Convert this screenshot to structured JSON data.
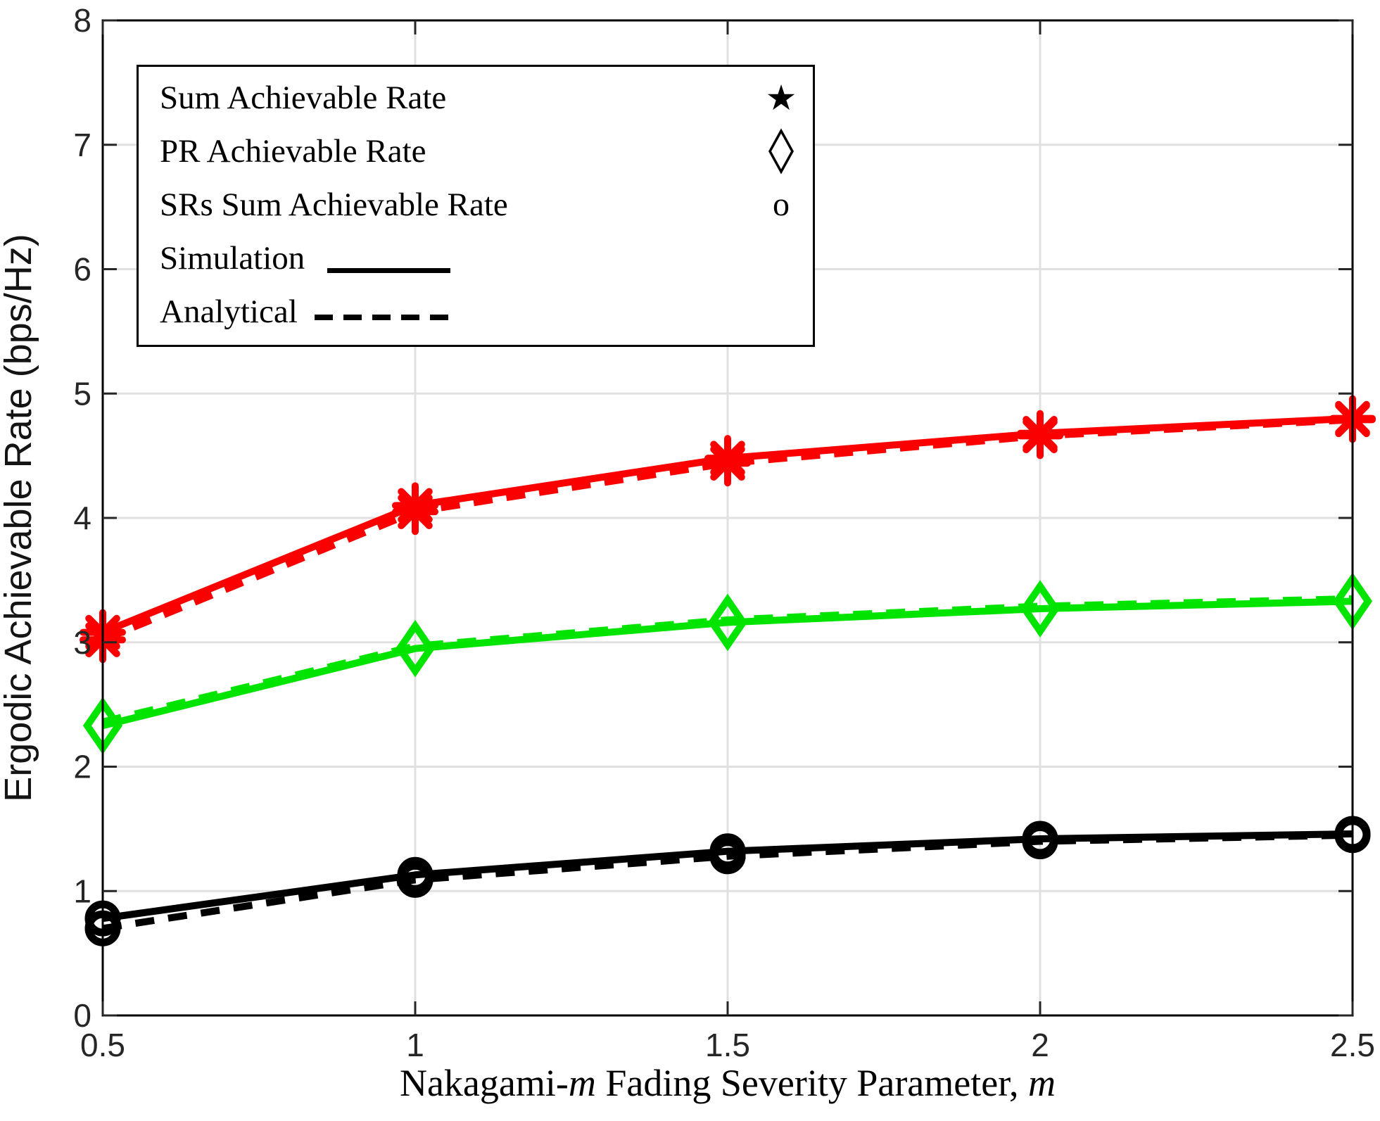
{
  "chart_data": {
    "type": "line",
    "x": [
      0.5,
      1.0,
      1.5,
      2.0,
      2.5
    ],
    "series": [
      {
        "name": "PR Achievable Rate (Analytical)",
        "color": "#00e400",
        "style": "dashed",
        "marker": "none",
        "values": [
          2.36,
          2.97,
          3.18,
          3.29,
          3.35
        ]
      },
      {
        "name": "PR Achievable Rate (Simulation)",
        "color": "#00e400",
        "style": "solid",
        "marker": "diamond",
        "values": [
          2.33,
          2.95,
          3.16,
          3.27,
          3.33
        ]
      },
      {
        "name": "Sum Achievable Rate (Simulation)",
        "color": "#fa0000",
        "style": "solid",
        "marker": "asterisk",
        "values": [
          3.08,
          4.1,
          4.48,
          4.68,
          4.8
        ]
      },
      {
        "name": "Sum Achievable Rate (Analytical)",
        "color": "#fa0000",
        "style": "dashed",
        "marker": "asterisk",
        "values": [
          3.02,
          4.05,
          4.44,
          4.66,
          4.79
        ]
      },
      {
        "name": "SRs Sum Achievable Rate (Simulation)",
        "color": "#000000",
        "style": "solid",
        "marker": "circle",
        "values": [
          0.78,
          1.13,
          1.32,
          1.42,
          1.46
        ]
      },
      {
        "name": "SRs Sum Achievable Rate (Analytical)",
        "color": "#000000",
        "style": "dashed",
        "marker": "circle",
        "values": [
          0.7,
          1.09,
          1.28,
          1.4,
          1.45
        ]
      }
    ],
    "title": "",
    "xlabel": "Nakagami-m Fading Severity Parameter, m",
    "xlabel_parts": [
      {
        "text": "Nakagami-",
        "italic": false
      },
      {
        "text": "m",
        "italic": true
      },
      {
        "text": " Fading Severity Parameter, ",
        "italic": false
      },
      {
        "text": "m",
        "italic": true
      }
    ],
    "ylabel": "Ergodic Achievable Rate (bps/Hz)",
    "xlim": [
      0.5,
      2.5
    ],
    "ylim": [
      0,
      8
    ],
    "xticks": [
      0.5,
      1,
      1.5,
      2,
      2.5
    ],
    "xtick_labels": [
      "0.5",
      "1",
      "1.5",
      "2",
      "2.5"
    ],
    "yticks": [
      0,
      1,
      2,
      3,
      4,
      5,
      6,
      7,
      8
    ],
    "ytick_labels": [
      "0",
      "1",
      "2",
      "3",
      "4",
      "5",
      "6",
      "7",
      "8"
    ],
    "grid": true,
    "grid_color": "#e0e0e0",
    "axis_color": "#000000",
    "tick_label_color": "#262626",
    "legend_position": "top-left"
  },
  "legend": {
    "entries": [
      {
        "label": "Sum Achievable Rate",
        "marker": "star"
      },
      {
        "label": "PR Achievable Rate",
        "marker": "diamond"
      },
      {
        "label": "SRs Sum Achievable Rate",
        "marker": "circle"
      },
      {
        "label": "Simulation",
        "sample": "solid"
      },
      {
        "label": "Analytical",
        "sample": "dashed"
      }
    ],
    "star_glyph": "★",
    "circle_glyph": "o"
  }
}
